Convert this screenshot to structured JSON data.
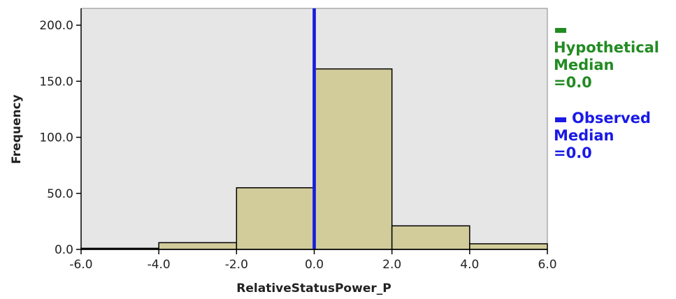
{
  "chart_data": {
    "type": "bar",
    "subtype": "histogram",
    "xlabel": "RelativeStatusPower_P",
    "ylabel": "Frequency",
    "xlim": [
      -6.0,
      6.0
    ],
    "ylim": [
      0,
      215
    ],
    "x_ticks": [
      -6.0,
      -4.0,
      -2.0,
      0.0,
      2.0,
      4.0,
      6.0
    ],
    "y_ticks": [
      0.0,
      50.0,
      100.0,
      150.0,
      200.0
    ],
    "bins": [
      {
        "start": -6.0,
        "end": -4.0,
        "value": 1
      },
      {
        "start": -4.0,
        "end": -2.0,
        "value": 6
      },
      {
        "start": -2.0,
        "end": 0.0,
        "value": 55
      },
      {
        "start": 0.0,
        "end": 2.0,
        "value": 161
      },
      {
        "start": 2.0,
        "end": 4.0,
        "value": 21
      },
      {
        "start": 4.0,
        "end": 6.0,
        "value": 5
      }
    ],
    "reference_lines": [
      {
        "name": "Hypothetical Median",
        "value": 0.0,
        "color": "#228b22"
      },
      {
        "name": "Observed Median",
        "value": 0.0,
        "color": "#1a1ae6"
      }
    ],
    "colors": {
      "bar_fill": "#d2cc9b",
      "bar_stroke": "#000000",
      "plot_bg": "#e6e6e6"
    },
    "grid": false,
    "legend_position": "right"
  },
  "legend": {
    "items": [
      {
        "lines": [
          "Hypothetical",
          "Median",
          "=0.0"
        ],
        "color": "#228b22"
      },
      {
        "lines": [
          "Observed",
          "Median",
          "=0.0"
        ],
        "color": "#1a1ae6"
      }
    ]
  }
}
